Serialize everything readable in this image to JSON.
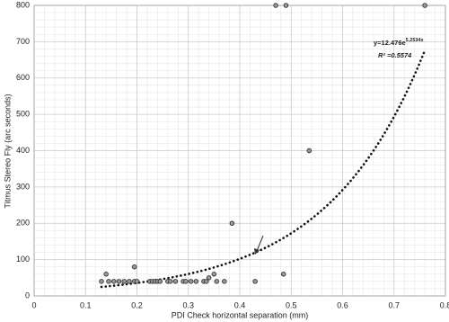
{
  "chart_data": {
    "type": "scatter",
    "x_label": "PDI Check horizontal separation (mm)",
    "y_label": "Titmus Stereo Fly (arc seconds)",
    "x": [
      0.131,
      0.14,
      0.145,
      0.155,
      0.165,
      0.175,
      0.185,
      0.195,
      0.195,
      0.2,
      0.225,
      0.23,
      0.235,
      0.24,
      0.245,
      0.26,
      0.265,
      0.275,
      0.29,
      0.295,
      0.305,
      0.315,
      0.33,
      0.335,
      0.34,
      0.35,
      0.355,
      0.37,
      0.385,
      0.43,
      0.47,
      0.49,
      0.485,
      0.535,
      0.76
    ],
    "values": [
      40,
      60,
      40,
      40,
      40,
      40,
      40,
      40,
      80,
      40,
      40,
      40,
      40,
      40,
      40,
      40,
      40,
      40,
      40,
      40,
      40,
      40,
      40,
      40,
      50,
      60,
      40,
      40,
      200,
      40,
      800,
      800,
      60,
      400,
      800
    ],
    "marker_color": "#999999",
    "xlim": [
      0,
      0.8
    ],
    "xticks": [
      0,
      0.1,
      0.2,
      0.3,
      0.4,
      0.5,
      0.6,
      0.7,
      0.8
    ],
    "ylim": [
      0,
      800
    ],
    "yticks": [
      0,
      100,
      200,
      300,
      400,
      500,
      600,
      700,
      800
    ],
    "grid": true,
    "minor_divisions": 5,
    "trendline": {
      "type": "exponential",
      "a": 12.476,
      "b": 5.2534,
      "color": "#111111",
      "equation": "y=12.476e",
      "exponent": "5.2534x",
      "r_squared": "R² =0.5574"
    }
  }
}
